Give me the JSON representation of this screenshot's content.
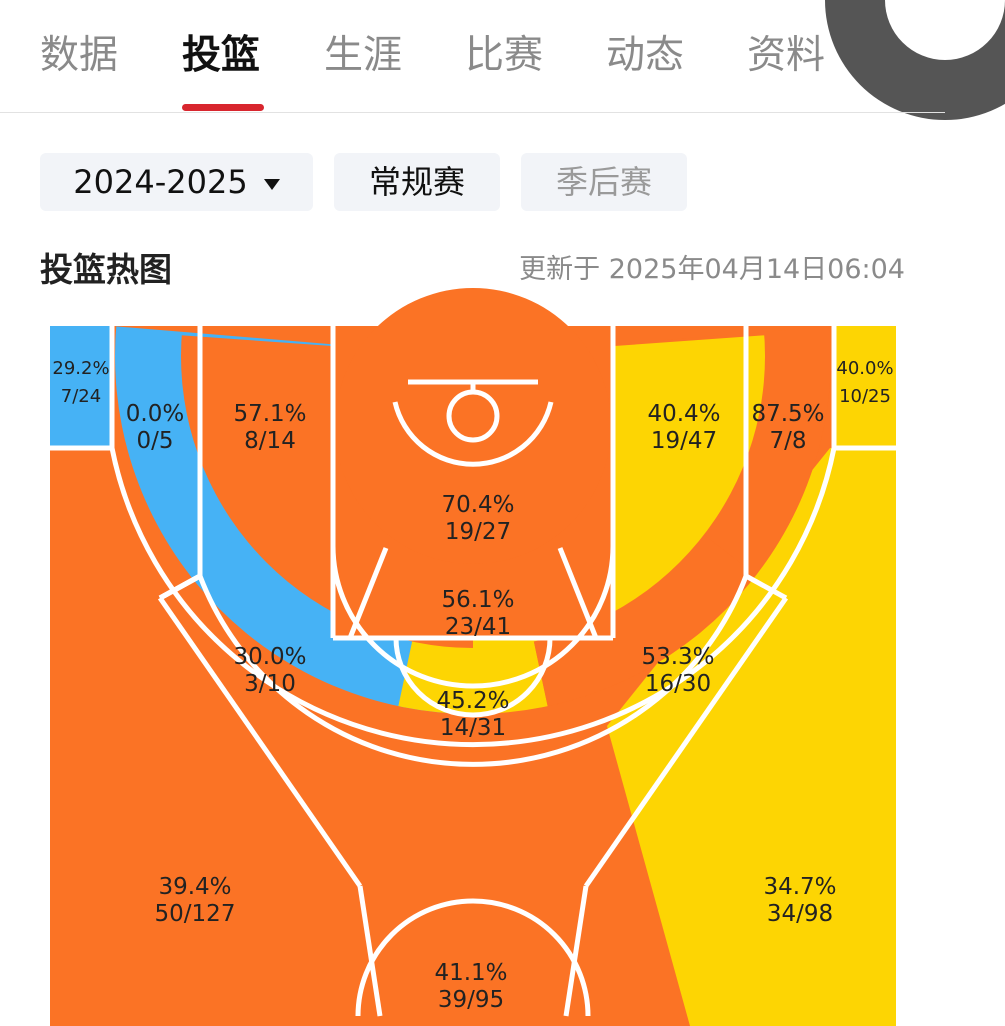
{
  "tabs": [
    {
      "label": "数据"
    },
    {
      "label": "投篮"
    },
    {
      "label": "生涯"
    },
    {
      "label": "比赛"
    },
    {
      "label": "动态"
    },
    {
      "label": "资料"
    }
  ],
  "active_tab": "投篮",
  "filters": {
    "season": "2024-2025",
    "regular": "常规赛",
    "playoff": "季后赛"
  },
  "heatmap": {
    "title": "投篮热图",
    "updated": "更新于 2025年04月14日06:04",
    "colors": {
      "hot": "#fb7325",
      "avg": "#fdd503",
      "cold": "#46b2f5"
    },
    "zones": {
      "left_corner_three": {
        "pct": "29.2%",
        "made_att": "7/24",
        "level": "cold"
      },
      "left_baseline_mid": {
        "pct": "0.0%",
        "made_att": "0/5",
        "level": "cold"
      },
      "left_elbow_mid": {
        "pct": "57.1%",
        "made_att": "8/14",
        "level": "hot"
      },
      "restricted_area": {
        "pct": "70.4%",
        "made_att": "19/27",
        "level": "hot"
      },
      "paint": {
        "pct": "56.1%",
        "made_att": "23/41",
        "level": "hot"
      },
      "right_elbow_mid": {
        "pct": "40.4%",
        "made_att": "19/47",
        "level": "avg"
      },
      "right_baseline_mid": {
        "pct": "87.5%",
        "made_att": "7/8",
        "level": "hot"
      },
      "right_corner_three": {
        "pct": "40.0%",
        "made_att": "10/25",
        "level": "avg"
      },
      "left_wing_mid": {
        "pct": "30.0%",
        "made_att": "3/10",
        "level": "cold"
      },
      "top_key_mid": {
        "pct": "45.2%",
        "made_att": "14/31",
        "level": "avg"
      },
      "right_wing_mid": {
        "pct": "53.3%",
        "made_att": "16/30",
        "level": "hot"
      },
      "left_wing_three": {
        "pct": "39.4%",
        "made_att": "50/127",
        "level": "hot"
      },
      "right_wing_three": {
        "pct": "34.7%",
        "made_att": "34/98",
        "level": "avg"
      },
      "top_three": {
        "pct": "41.1%",
        "made_att": "39/95",
        "level": "hot"
      }
    }
  }
}
